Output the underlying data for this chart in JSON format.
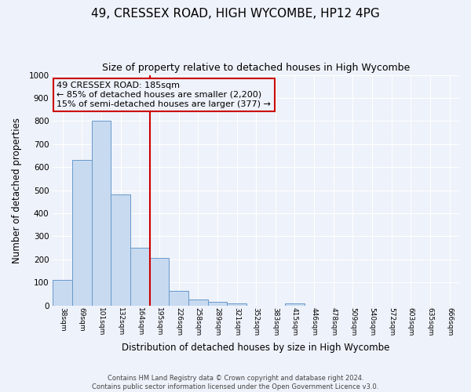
{
  "title": "49, CRESSEX ROAD, HIGH WYCOMBE, HP12 4PG",
  "subtitle": "Size of property relative to detached houses in High Wycombe",
  "xlabel": "Distribution of detached houses by size in High Wycombe",
  "ylabel": "Number of detached properties",
  "bin_labels": [
    "38sqm",
    "69sqm",
    "101sqm",
    "132sqm",
    "164sqm",
    "195sqm",
    "226sqm",
    "258sqm",
    "289sqm",
    "321sqm",
    "352sqm",
    "383sqm",
    "415sqm",
    "446sqm",
    "478sqm",
    "509sqm",
    "540sqm",
    "572sqm",
    "603sqm",
    "635sqm",
    "666sqm"
  ],
  "bar_heights": [
    110,
    630,
    800,
    480,
    250,
    205,
    62,
    27,
    17,
    10,
    0,
    0,
    10,
    0,
    0,
    0,
    0,
    0,
    0,
    0,
    0
  ],
  "bar_color": "#c8daf0",
  "bar_edge_color": "#6699cc",
  "vline_color": "#cc0000",
  "ylim": [
    0,
    1000
  ],
  "yticks": [
    0,
    100,
    200,
    300,
    400,
    500,
    600,
    700,
    800,
    900,
    1000
  ],
  "annotation_title": "49 CRESSEX ROAD: 185sqm",
  "annotation_line1": "← 85% of detached houses are smaller (2,200)",
  "annotation_line2": "15% of semi-detached houses are larger (377) →",
  "annotation_box_color": "#cc0000",
  "footer1": "Contains HM Land Registry data © Crown copyright and database right 2024.",
  "footer2": "Contains public sector information licensed under the Open Government Licence v3.0.",
  "bg_color": "#eef2fa",
  "grid_color": "#ffffff",
  "title_fontsize": 11,
  "subtitle_fontsize": 9
}
